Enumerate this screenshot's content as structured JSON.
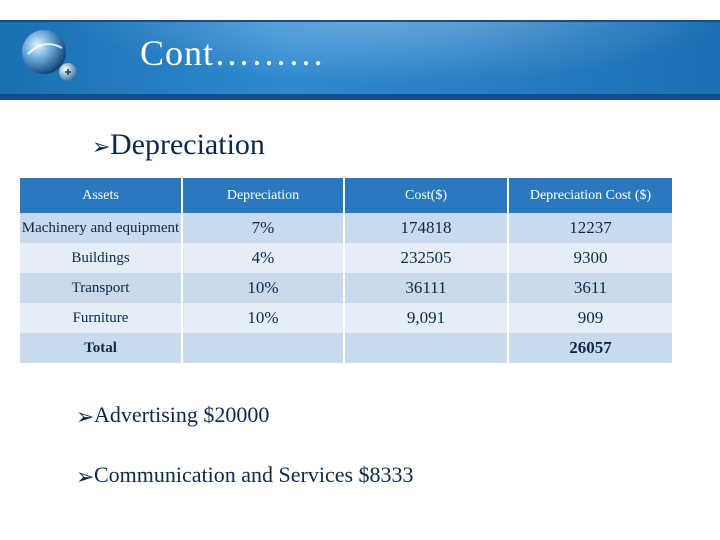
{
  "header": {
    "title": "Cont………"
  },
  "bullets": {
    "depreciation": "Depreciation",
    "advertising": "Advertising  $20000",
    "communication": "Communication and Services $8333"
  },
  "table": {
    "columns": [
      "Assets",
      "Depreciation",
      "Cost($)",
      "Depreciation Cost ($)"
    ],
    "rows": [
      [
        "Machinery and equipment",
        "7%",
        "174818",
        "12237"
      ],
      [
        "Buildings",
        "4%",
        "232505",
        "9300"
      ],
      [
        "Transport",
        "10%",
        "36111",
        "3611"
      ],
      [
        "Furniture",
        "10%",
        "9,091",
        "909"
      ]
    ],
    "total": {
      "label": "Total",
      "value": "26057"
    }
  }
}
